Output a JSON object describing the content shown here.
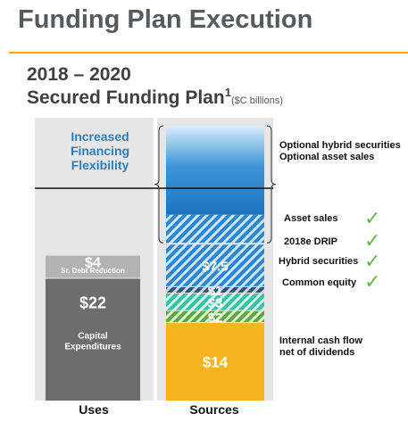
{
  "slide": {
    "title": "Funding Plan Execution",
    "chart_title_line1": "2018 – 2020",
    "chart_title_line2": "Secured Funding Plan",
    "chart_title_superscript": "1",
    "chart_units": "($C billions)"
  },
  "flexibility": {
    "text": [
      "Increased",
      "Financing",
      "Flexibility"
    ],
    "brace_label_lines": [
      "Optional hybrid securities",
      "Optional asset sales"
    ]
  },
  "annotations": [
    {
      "label": "Asset sales",
      "checked": true
    },
    {
      "label": "2018e DRIP",
      "checked": true
    },
    {
      "label": "Hybrid securities",
      "checked": true
    },
    {
      "label": "Common equity",
      "checked": true
    }
  ],
  "cashflow_label_lines": [
    "Internal cash flow",
    "net of dividends"
  ],
  "check_glyph": "✓",
  "colors": {
    "accent_rule": "#f5a800",
    "panel_bg": "#e6e6e6",
    "gray_dark": "#6d6d6d",
    "gray_light": "#b3b3b3",
    "blue_hatch": "#2a86d0",
    "blue_gradient_top": "#dbeefb",
    "blue_gradient_bottom": "#1a73bd",
    "navy_hatch": "#24557e",
    "teal_hatch": "#34c2a2",
    "green_hatch": "#5ba83c",
    "orange": "#f8b41e",
    "check": "#6ab547",
    "flex_text": "#2a7fc1"
  },
  "chart_data": {
    "type": "bar",
    "stacked": true,
    "categories": [
      "Uses",
      "Sources"
    ],
    "series": [
      {
        "category": "Uses",
        "label": "Capital Expenditures",
        "value": 22,
        "value_label": "$22"
      },
      {
        "category": "Uses",
        "label": "Sr. Debt Reduction",
        "value": 4,
        "value_label": "$4"
      },
      {
        "category": "Sources",
        "label": "Internal cash flow net of dividends",
        "value": 14,
        "value_label": "$14"
      },
      {
        "category": "Sources",
        "label": "Common equity",
        "value": 2,
        "value_label": "$2"
      },
      {
        "category": "Sources",
        "label": "Hybrid securities",
        "value": 3,
        "value_label": "$3"
      },
      {
        "category": "Sources",
        "label": "2018e DRIP",
        "value": 1,
        "value_label": "$1"
      },
      {
        "category": "Sources",
        "label": "Asset sales",
        "value": 7.5,
        "value_label": "$7.5"
      }
    ],
    "optional_block": {
      "category": "Sources",
      "labels": [
        "Optional hybrid securities",
        "Optional asset sales"
      ]
    },
    "ylim": [
      0,
      33
    ]
  }
}
